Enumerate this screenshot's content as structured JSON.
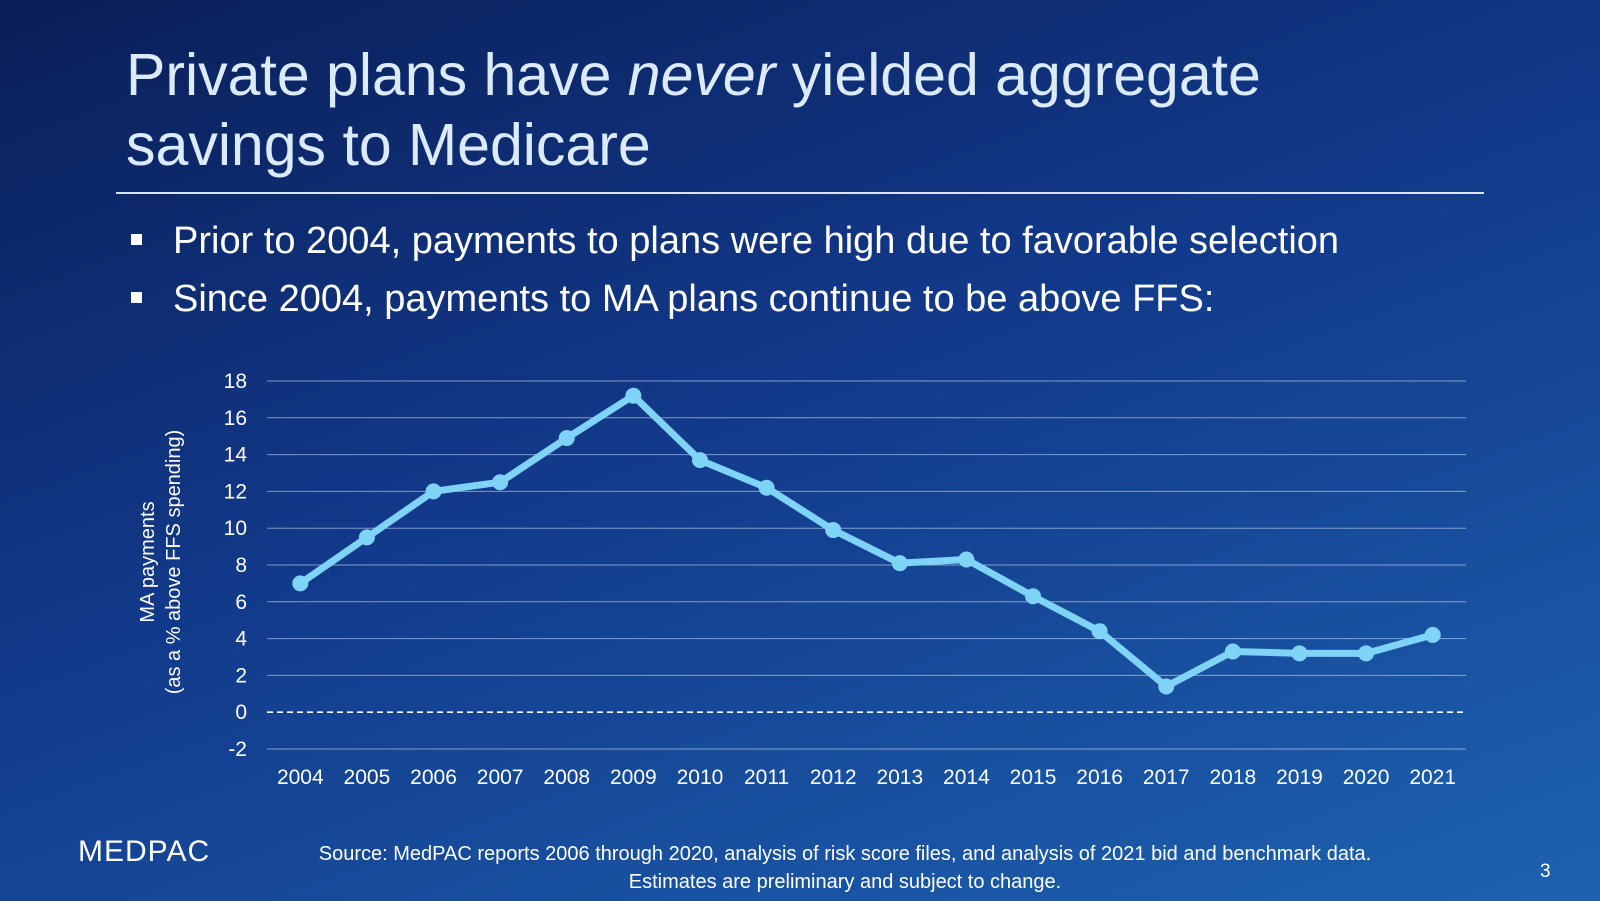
{
  "title": {
    "part1": "Private plans have ",
    "emphasis": "never",
    "part2": " yielded aggregate savings to Medicare"
  },
  "bullets": [
    "Prior to 2004, payments to plans were high due to favorable selection",
    "Since 2004, payments to MA plans continue to be above FFS:"
  ],
  "chart_data": {
    "type": "line",
    "title": "",
    "xlabel": "",
    "ylabel_line1": "MA payments",
    "ylabel_line2": "(as a % above FFS spending)",
    "categories": [
      "2004",
      "2005",
      "2006",
      "2007",
      "2008",
      "2009",
      "2010",
      "2011",
      "2012",
      "2013",
      "2014",
      "2015",
      "2016",
      "2017",
      "2018",
      "2019",
      "2020",
      "2021"
    ],
    "series": [
      {
        "name": "MA payments above FFS",
        "values": [
          7.0,
          9.5,
          12.0,
          12.5,
          14.9,
          17.2,
          13.7,
          12.2,
          9.9,
          8.1,
          8.3,
          6.3,
          4.4,
          1.4,
          3.3,
          3.2,
          3.2,
          4.2
        ]
      }
    ],
    "yticks": [
      18,
      16,
      14,
      12,
      10,
      8,
      6,
      4,
      2,
      0,
      -2
    ],
    "ylim": [
      -2,
      18
    ],
    "reference_line": 0,
    "grid": true,
    "line_color": "#7fd3f7"
  },
  "footer": {
    "logo": "MEDPAC",
    "source_line1": "Source: MedPAC reports 2006 through 2020, analysis of risk score files, and analysis of 2021 bid and benchmark data.",
    "source_line2": "Estimates are preliminary and subject to change.",
    "page_number": "3"
  }
}
